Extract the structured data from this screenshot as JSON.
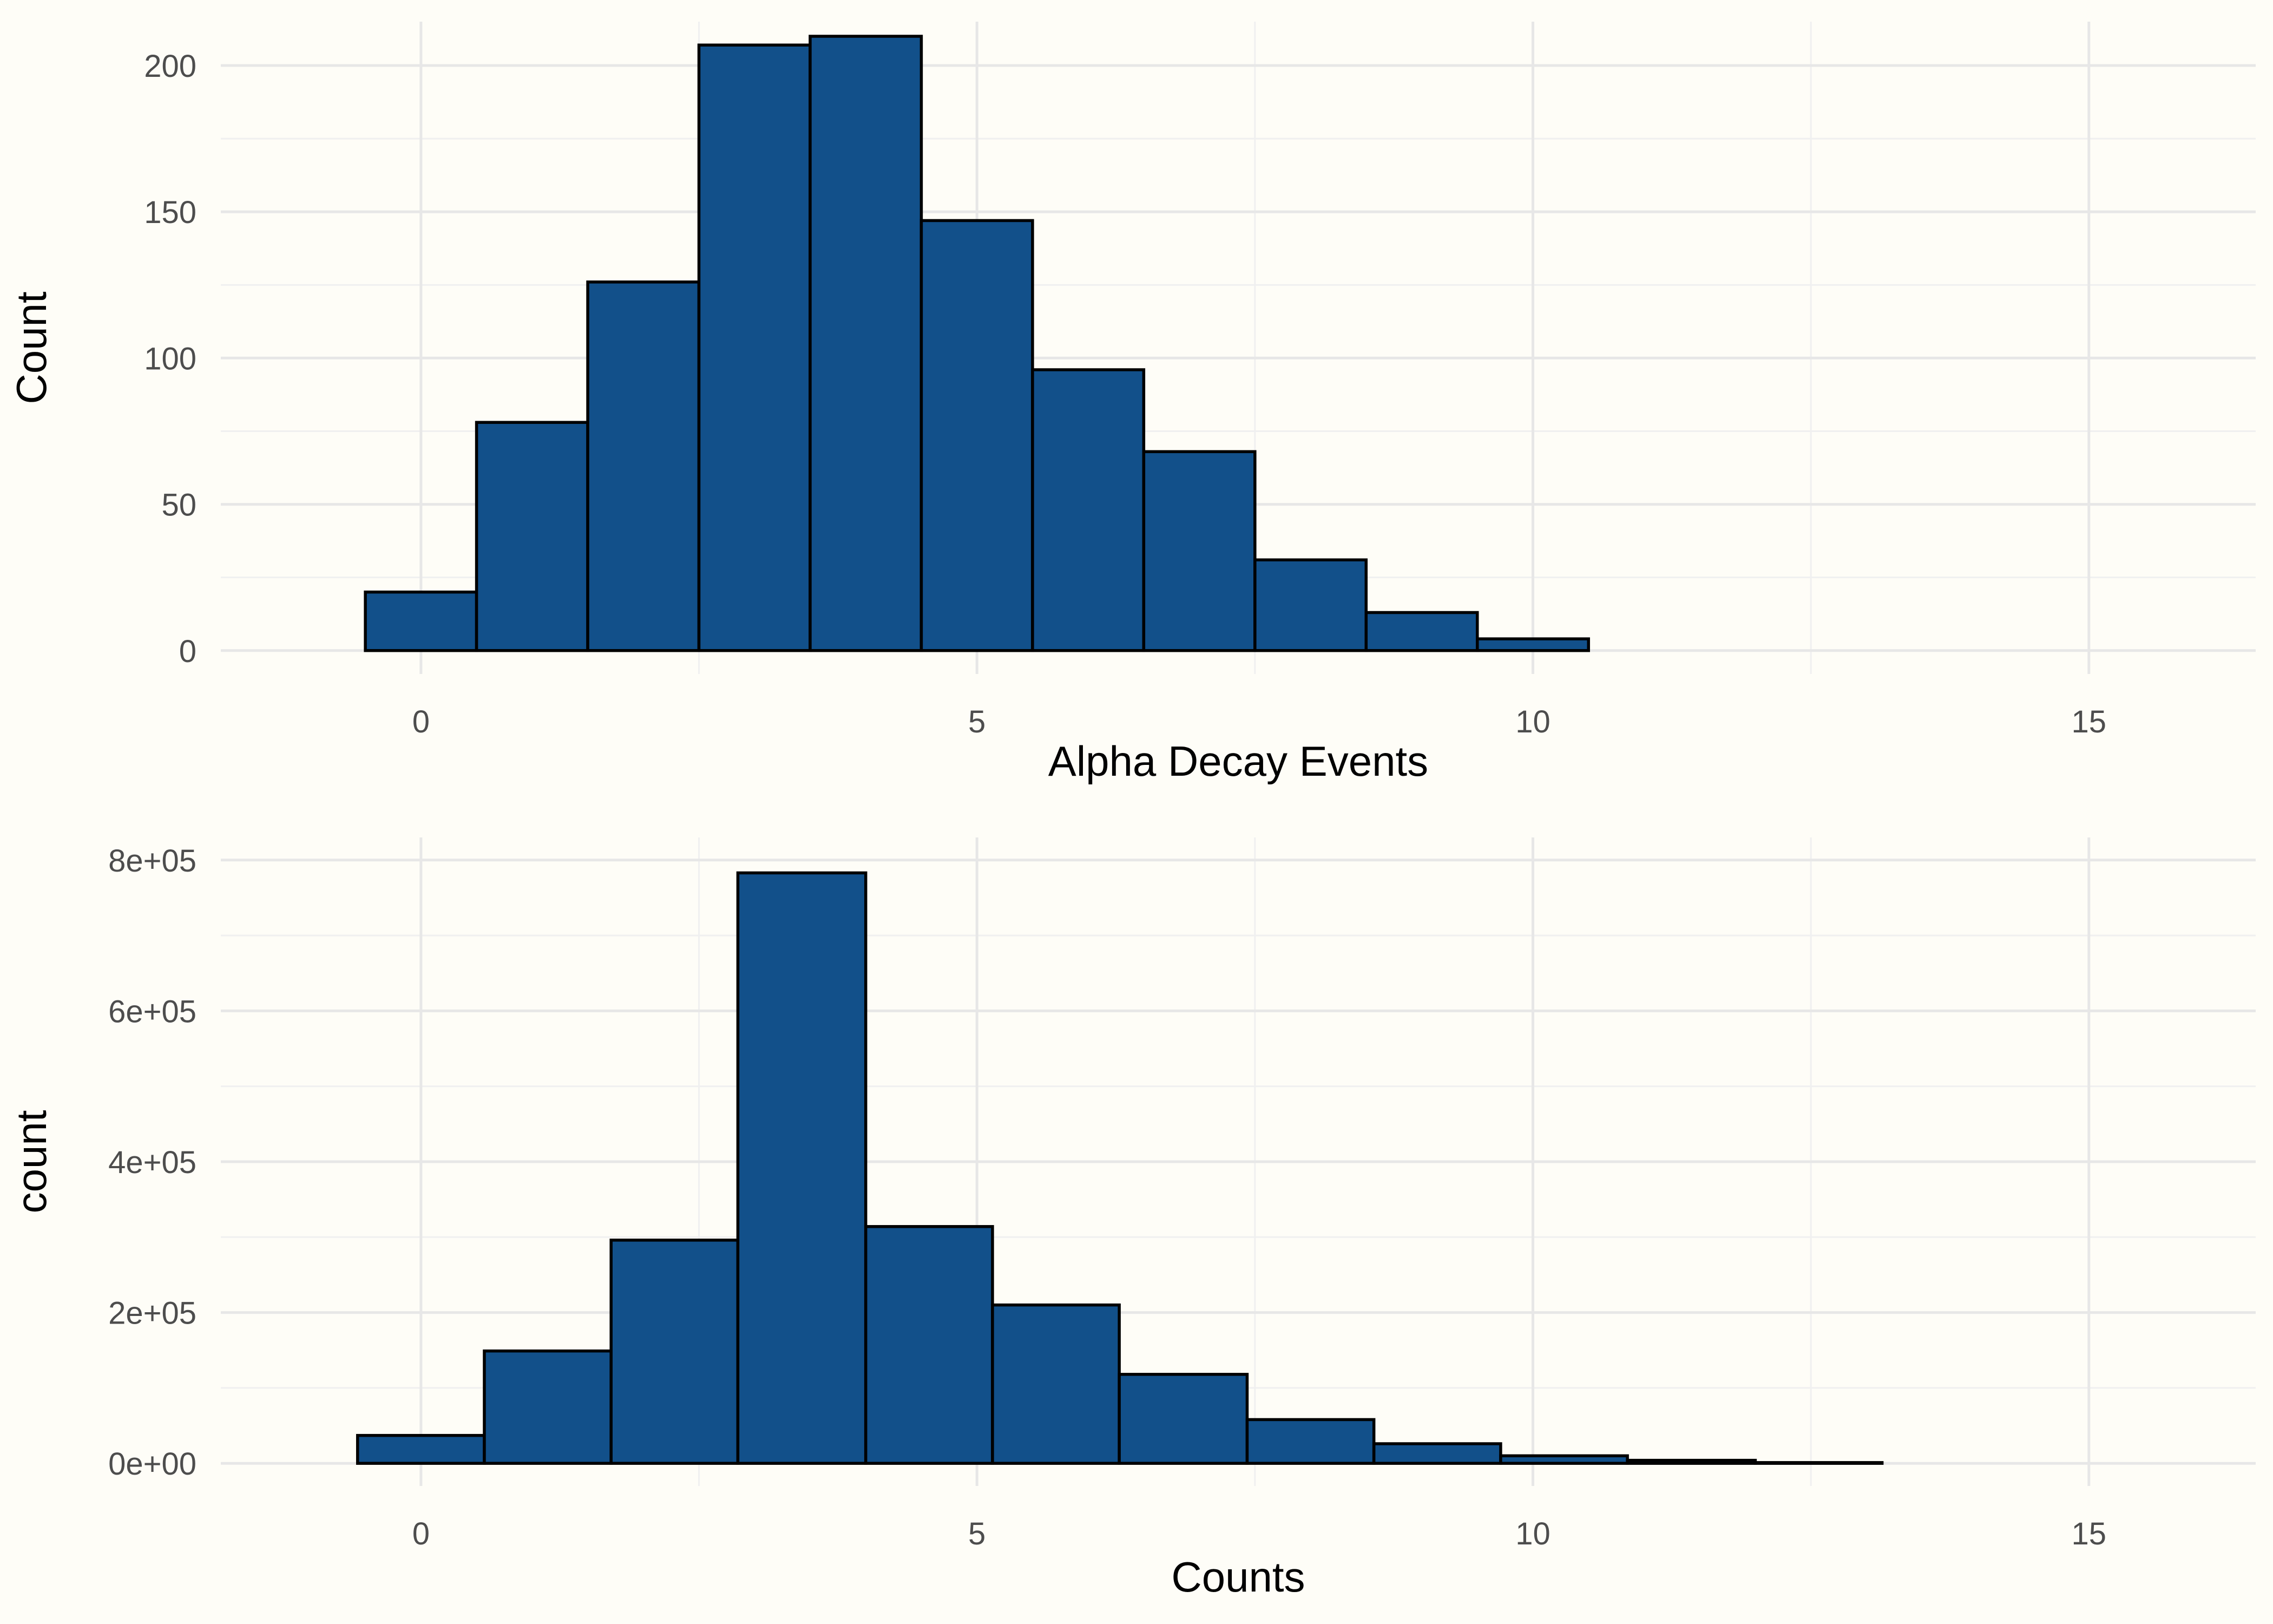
{
  "chart_data": [
    {
      "type": "bar",
      "subtype": "histogram",
      "xlabel": "Alpha Decay Events",
      "ylabel": "Count",
      "xlim": [
        -1.8,
        16.5
      ],
      "ylim": [
        -8,
        215
      ],
      "x_ticks": [
        0,
        5,
        10,
        15
      ],
      "x_tick_labels": [
        "0",
        "5",
        "10",
        "15"
      ],
      "y_ticks": [
        0,
        50,
        100,
        150,
        200
      ],
      "y_tick_labels": [
        "0",
        "50",
        "100",
        "150",
        "200"
      ],
      "grid": true,
      "bin_width": 1,
      "bins": [
        {
          "x_start": -0.5,
          "x_end": 0.5,
          "value": 20
        },
        {
          "x_start": 0.5,
          "x_end": 1.5,
          "value": 78
        },
        {
          "x_start": 1.5,
          "x_end": 2.5,
          "value": 126
        },
        {
          "x_start": 2.5,
          "x_end": 3.5,
          "value": 207
        },
        {
          "x_start": 3.5,
          "x_end": 4.5,
          "value": 210
        },
        {
          "x_start": 4.5,
          "x_end": 5.5,
          "value": 147
        },
        {
          "x_start": 5.5,
          "x_end": 6.5,
          "value": 96
        },
        {
          "x_start": 6.5,
          "x_end": 7.5,
          "value": 68
        },
        {
          "x_start": 7.5,
          "x_end": 8.5,
          "value": 31
        },
        {
          "x_start": 8.5,
          "x_end": 9.5,
          "value": 13
        },
        {
          "x_start": 9.5,
          "x_end": 10.5,
          "value": 4
        },
        {
          "x_start": 10.5,
          "x_end": 11.5,
          "value": 0
        },
        {
          "x_start": 11.5,
          "x_end": 12.5,
          "value": 0
        },
        {
          "x_start": 12.5,
          "x_end": 13.5,
          "value": 0
        },
        {
          "x_start": 13.5,
          "x_end": 14.5,
          "value": 0
        }
      ],
      "bar_color": "#12508A",
      "outline_color": "#000000"
    },
    {
      "type": "bar",
      "subtype": "histogram",
      "xlabel": "Counts",
      "ylabel": "count",
      "xlim": [
        -1.8,
        16.5
      ],
      "ylim": [
        -30000,
        830000
      ],
      "x_ticks": [
        0,
        5,
        10,
        15
      ],
      "x_tick_labels": [
        "0",
        "5",
        "10",
        "15"
      ],
      "y_ticks": [
        0,
        200000,
        400000,
        600000,
        800000
      ],
      "y_tick_labels": [
        "0e+00",
        "2e+05",
        "4e+05",
        "6e+05",
        "8e+05"
      ],
      "grid": true,
      "bin_width": 1.14,
      "bins": [
        {
          "x_start": -0.57,
          "x_end": 0.57,
          "value": 37000
        },
        {
          "x_start": 0.57,
          "x_end": 1.71,
          "value": 149000
        },
        {
          "x_start": 1.71,
          "x_end": 2.85,
          "value": 296000
        },
        {
          "x_start": 2.85,
          "x_end": 4.0,
          "value": 783000
        },
        {
          "x_start": 4.0,
          "x_end": 5.14,
          "value": 314000
        },
        {
          "x_start": 5.14,
          "x_end": 6.28,
          "value": 210000
        },
        {
          "x_start": 6.28,
          "x_end": 7.43,
          "value": 118000
        },
        {
          "x_start": 7.43,
          "x_end": 8.57,
          "value": 58000
        },
        {
          "x_start": 8.57,
          "x_end": 9.71,
          "value": 26000
        },
        {
          "x_start": 9.71,
          "x_end": 10.85,
          "value": 10000
        },
        {
          "x_start": 10.85,
          "x_end": 12.0,
          "value": 4000
        },
        {
          "x_start": 12.0,
          "x_end": 13.14,
          "value": 1000
        },
        {
          "x_start": 13.14,
          "x_end": 14.28,
          "value": 0
        }
      ],
      "bar_color": "#12508A",
      "outline_color": "#000000"
    }
  ]
}
